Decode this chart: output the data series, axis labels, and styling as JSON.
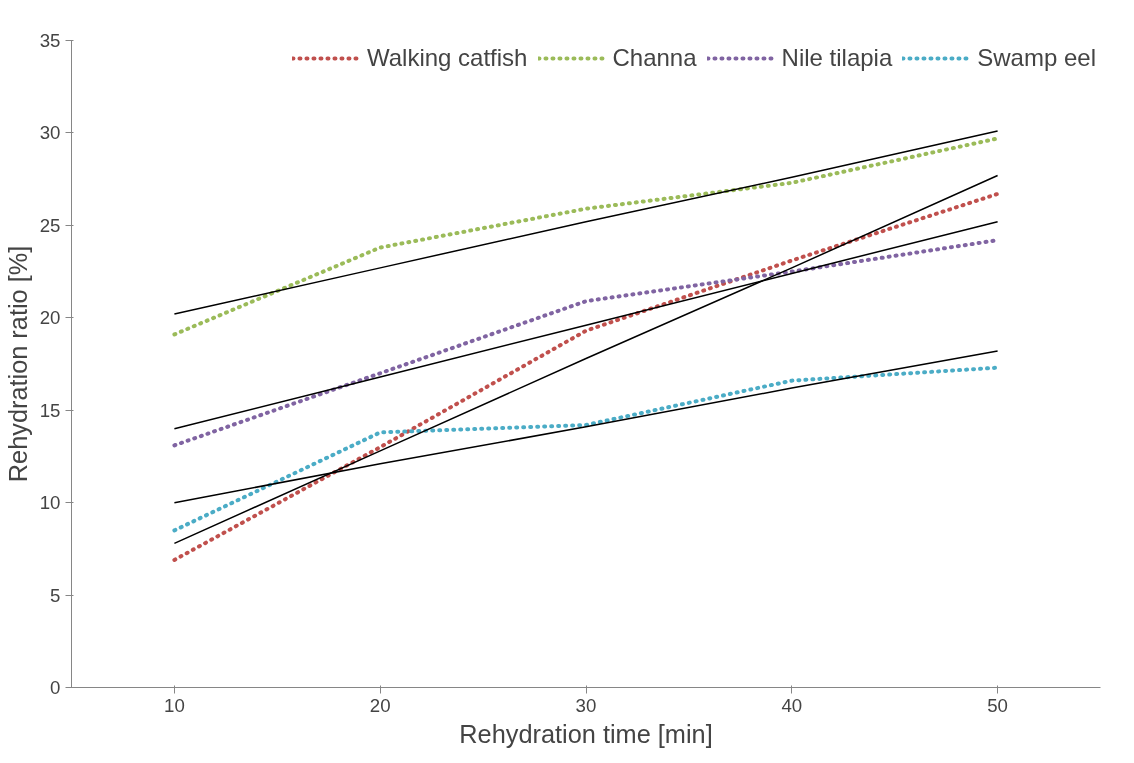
{
  "chart_data": {
    "type": "line",
    "xlabel": "Rehydration time [min]",
    "ylabel": "Rehydration ratio [%]",
    "x": [
      10,
      20,
      30,
      40,
      50
    ],
    "xlim": [
      5,
      55
    ],
    "xticks": [
      10,
      20,
      30,
      40,
      50
    ],
    "ylim": [
      0,
      35
    ],
    "yticks": [
      0,
      5,
      10,
      15,
      20,
      25,
      30,
      35
    ],
    "grid": false,
    "legend": "top",
    "marker": "none",
    "line_style": "dotted",
    "series": [
      {
        "name": "Walking catfish",
        "color": "#c0504d",
        "values": [
          6.9,
          13.0,
          19.3,
          23.1,
          26.7
        ]
      },
      {
        "name": "Channa",
        "color": "#9bbb59",
        "values": [
          19.1,
          23.8,
          25.9,
          27.3,
          29.7
        ]
      },
      {
        "name": "Nile tilapia",
        "color": "#8064a2",
        "values": [
          13.1,
          17.0,
          20.9,
          22.5,
          24.2
        ]
      },
      {
        "name": "Swamp eel",
        "color": "#4bacc6",
        "values": [
          8.5,
          13.8,
          14.2,
          16.6,
          17.3
        ]
      },
      {
        "color": "#000000",
        "line_style": "solid",
        "values": [
          7.8,
          12.8,
          17.8,
          22.7,
          27.7
        ]
      },
      {
        "color": "#000000",
        "line_style": "solid",
        "values": [
          20.2,
          22.7,
          25.2,
          27.6,
          30.1
        ]
      },
      {
        "color": "#000000",
        "line_style": "solid",
        "values": [
          14.0,
          16.8,
          19.6,
          22.4,
          25.2
        ]
      },
      {
        "color": "#000000",
        "line_style": "solid",
        "values": [
          10.0,
          12.1,
          14.1,
          16.2,
          18.2
        ]
      }
    ]
  }
}
